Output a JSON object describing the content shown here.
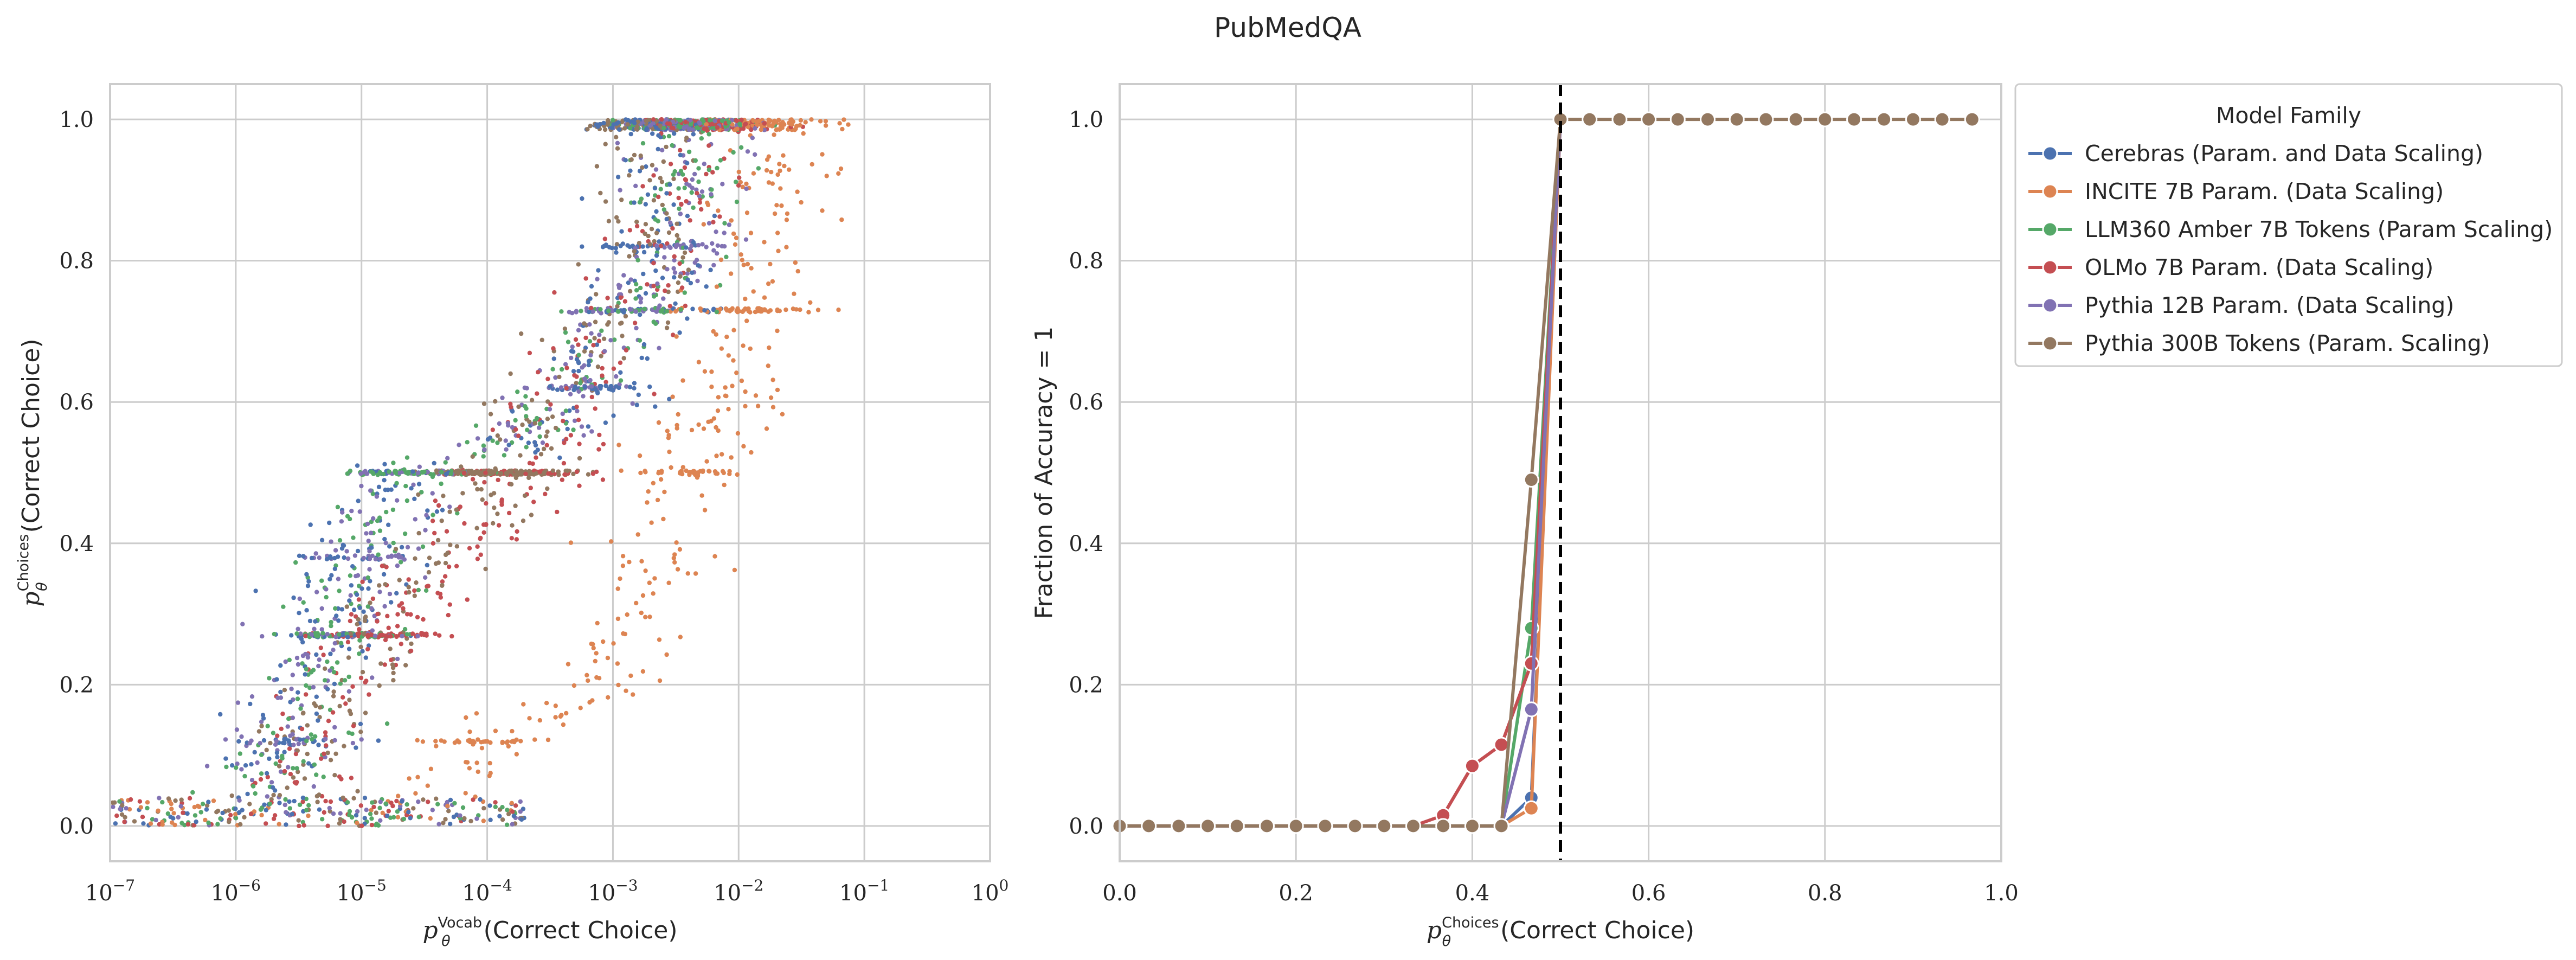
{
  "figure": {
    "title": "PubMedQA"
  },
  "chart_data": [
    {
      "type": "scatter",
      "x_scale": "log",
      "xlim": [
        1e-07,
        1
      ],
      "ylim": [
        -0.05,
        1.05
      ],
      "xlabel": {
        "symbol": "p",
        "sub": "θ",
        "sup": "Vocab",
        "rest": "(Correct Choice)"
      },
      "ylabel": {
        "symbol": "p",
        "sub": "θ",
        "sup": "Choices",
        "rest": "(Correct Choice)"
      },
      "x_ticks": [
        {
          "value": 1e-07,
          "base": "10",
          "exp": "−7"
        },
        {
          "value": 1e-06,
          "base": "10",
          "exp": "−6"
        },
        {
          "value": 1e-05,
          "base": "10",
          "exp": "−5"
        },
        {
          "value": 0.0001,
          "base": "10",
          "exp": "−4"
        },
        {
          "value": 0.001,
          "base": "10",
          "exp": "−3"
        },
        {
          "value": 0.01,
          "base": "10",
          "exp": "−2"
        },
        {
          "value": 0.1,
          "base": "10",
          "exp": "−1"
        },
        {
          "value": 1,
          "base": "10",
          "exp": "0"
        }
      ],
      "y_ticks": [
        {
          "value": 0.0,
          "label": "0.0"
        },
        {
          "value": 0.2,
          "label": "0.2"
        },
        {
          "value": 0.4,
          "label": "0.4"
        },
        {
          "value": 0.6,
          "label": "0.6"
        },
        {
          "value": 0.8,
          "label": "0.8"
        },
        {
          "value": 1.0,
          "label": "1.0"
        }
      ],
      "grid": true,
      "series": [
        {
          "color": "#4c72b0",
          "density": [
            [
              1e-05,
              0.52
            ],
            [
              0.0001,
              0.5
            ],
            [
              0.001,
              0.74
            ]
          ],
          "bands": [
            0.12,
            0.27,
            0.38,
            0.5,
            0.62,
            0.73,
            0.82
          ]
        },
        {
          "color": "#dd8452",
          "density": [
            [
              3e-05,
              0.1
            ],
            [
              0.0005,
              0.2
            ],
            [
              0.01,
              0.85
            ]
          ],
          "bands": [
            0.12,
            0.5,
            0.73
          ]
        },
        {
          "color": "#55a868",
          "density": [
            [
              1e-05,
              0.5
            ],
            [
              0.0001,
              0.55
            ],
            [
              0.002,
              0.82
            ]
          ],
          "bands": [
            0.27,
            0.5,
            0.73
          ]
        },
        {
          "color": "#c44e52",
          "density": [
            [
              3e-06,
              0.2
            ],
            [
              0.0001,
              0.5
            ],
            [
              0.003,
              0.92
            ]
          ],
          "bands": [
            0.27,
            0.5
          ]
        },
        {
          "color": "#8172b3",
          "density": [
            [
              1e-05,
              0.5
            ],
            [
              0.0001,
              0.55
            ],
            [
              0.002,
              0.82
            ]
          ],
          "bands": [
            0.12,
            0.27,
            0.38,
            0.5,
            0.62,
            0.73,
            0.82
          ]
        },
        {
          "color": "#937860",
          "density": [
            [
              1e-06,
              0.03
            ],
            [
              1e-05,
              0.3
            ],
            [
              0.001,
              0.8
            ]
          ],
          "bands": [
            0.5
          ]
        }
      ]
    },
    {
      "type": "line",
      "xlim": [
        0,
        1
      ],
      "ylim": [
        -0.05,
        1.05
      ],
      "xlabel": {
        "symbol": "p",
        "sub": "θ",
        "sup": "Choices",
        "rest": "(Correct Choice)"
      },
      "ylabel": "Fraction of Accuracy = 1",
      "x_ticks": [
        {
          "value": 0.0,
          "label": "0.0"
        },
        {
          "value": 0.2,
          "label": "0.2"
        },
        {
          "value": 0.4,
          "label": "0.4"
        },
        {
          "value": 0.6,
          "label": "0.6"
        },
        {
          "value": 0.8,
          "label": "0.8"
        },
        {
          "value": 1.0,
          "label": "1.0"
        }
      ],
      "y_ticks": [
        {
          "value": 0.0,
          "label": "0.0"
        },
        {
          "value": 0.2,
          "label": "0.2"
        },
        {
          "value": 0.4,
          "label": "0.4"
        },
        {
          "value": 0.6,
          "label": "0.6"
        },
        {
          "value": 0.8,
          "label": "0.8"
        },
        {
          "value": 1.0,
          "label": "1.0"
        }
      ],
      "vline": 0.5,
      "grid": true,
      "legend": {
        "title": "Model Family",
        "placement": "outside-upper-right"
      },
      "series": [
        {
          "name": "Cerebras (Param. and Data Scaling)",
          "color": "#4c72b0",
          "x": [
            0.0,
            0.033,
            0.067,
            0.1,
            0.133,
            0.167,
            0.2,
            0.233,
            0.267,
            0.3,
            0.333,
            0.367,
            0.4,
            0.433,
            0.467,
            0.5
          ],
          "y": [
            0,
            0,
            0,
            0,
            0,
            0,
            0,
            0,
            0,
            0,
            0,
            0,
            0,
            0,
            0.04,
            1.0
          ]
        },
        {
          "name": "INCITE 7B Param. (Data Scaling)",
          "color": "#dd8452",
          "x": [
            0.0,
            0.033,
            0.067,
            0.1,
            0.133,
            0.167,
            0.2,
            0.233,
            0.267,
            0.3,
            0.333,
            0.367,
            0.4,
            0.433,
            0.467,
            0.5
          ],
          "y": [
            0,
            0,
            0,
            0,
            0,
            0,
            0,
            0,
            0,
            0,
            0,
            0,
            0,
            0,
            0.025,
            1.0
          ]
        },
        {
          "name": "LLM360 Amber 7B Tokens (Param Scaling)",
          "color": "#55a868",
          "x": [
            0.0,
            0.033,
            0.067,
            0.1,
            0.133,
            0.167,
            0.2,
            0.233,
            0.267,
            0.3,
            0.333,
            0.367,
            0.4,
            0.433,
            0.467,
            0.5
          ],
          "y": [
            0,
            0,
            0,
            0,
            0,
            0,
            0,
            0,
            0,
            0,
            0,
            0,
            0,
            0,
            0.28,
            1.0
          ]
        },
        {
          "name": "OLMo 7B Param. (Data Scaling)",
          "color": "#c44e52",
          "x": [
            0.0,
            0.033,
            0.067,
            0.1,
            0.133,
            0.167,
            0.2,
            0.233,
            0.267,
            0.3,
            0.333,
            0.367,
            0.4,
            0.433,
            0.467,
            0.5
          ],
          "y": [
            0,
            0,
            0,
            0,
            0,
            0,
            0,
            0,
            0,
            0,
            0,
            0.015,
            0.085,
            0.115,
            0.23,
            1.0
          ]
        },
        {
          "name": "Pythia 12B Param. (Data Scaling)",
          "color": "#8172b3",
          "x": [
            0.0,
            0.033,
            0.067,
            0.1,
            0.133,
            0.167,
            0.2,
            0.233,
            0.267,
            0.3,
            0.333,
            0.367,
            0.4,
            0.433,
            0.467,
            0.5
          ],
          "y": [
            0,
            0,
            0,
            0,
            0,
            0,
            0,
            0,
            0,
            0,
            0,
            0,
            0,
            0,
            0.165,
            1.0
          ]
        },
        {
          "name": "Pythia 300B Tokens (Param. Scaling)",
          "color": "#937860",
          "x": [
            0.0,
            0.033,
            0.067,
            0.1,
            0.133,
            0.167,
            0.2,
            0.233,
            0.267,
            0.3,
            0.333,
            0.367,
            0.4,
            0.433,
            0.467,
            0.5,
            0.533,
            0.567,
            0.6,
            0.633,
            0.667,
            0.7,
            0.733,
            0.767,
            0.8,
            0.833,
            0.867,
            0.9,
            0.933,
            0.967
          ],
          "y": [
            0,
            0,
            0,
            0,
            0,
            0,
            0,
            0,
            0,
            0,
            0,
            0,
            0,
            0,
            0.49,
            1.0,
            1.0,
            1.0,
            1.0,
            1.0,
            1.0,
            1.0,
            1.0,
            1.0,
            1.0,
            1.0,
            1.0,
            1.0,
            1.0,
            1.0
          ]
        }
      ]
    }
  ]
}
